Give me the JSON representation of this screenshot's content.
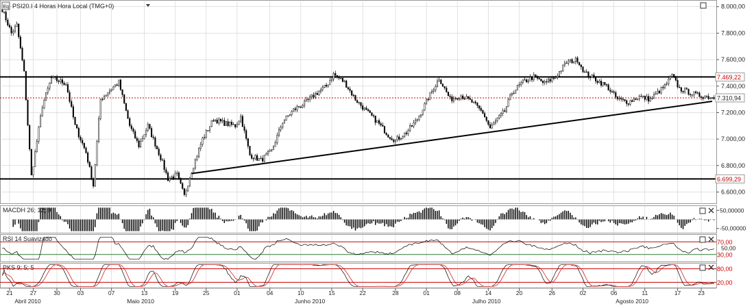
{
  "header": {
    "symbol_icon": "eq-icon",
    "title": "PSI20.I 4 Horas Hora Local (TMG+0)"
  },
  "colors": {
    "up": "#ffffff",
    "down": "#000000",
    "grid": "#cfcfcf",
    "price_line": "#cc0000",
    "level_label": "#cc0000",
    "macd": "#000000",
    "rsi": "#000000",
    "stoch_k": "#000000",
    "stoch_d": "#cc0000"
  },
  "chart_data": [
    {
      "type": "candlestick",
      "name": "price",
      "ylim": [
        6520,
        8040
      ],
      "y_ticks": [
        8000,
        7800,
        7600,
        7400,
        7200,
        7000,
        6800,
        6600
      ],
      "y_tick_labels": [
        "8.000,00",
        "7.800,00",
        "7.600,00",
        "7.400,00",
        "7.200,00",
        "7.000,00",
        "6.800,00",
        "6.600,00"
      ],
      "x_ticks": [
        {
          "label": "21",
          "i": 4
        },
        {
          "label": "27",
          "i": 17
        },
        {
          "label": "30",
          "i": 30
        },
        {
          "label": "03",
          "i": 43
        },
        {
          "label": "07",
          "i": 60
        },
        {
          "label": "13",
          "i": 78
        },
        {
          "label": "19",
          "i": 95
        },
        {
          "label": "25",
          "i": 112
        },
        {
          "label": "01",
          "i": 129
        },
        {
          "label": "04",
          "i": 147
        },
        {
          "label": "10",
          "i": 164
        },
        {
          "label": "15",
          "i": 181
        },
        {
          "label": "22",
          "i": 198
        },
        {
          "label": "28",
          "i": 216
        },
        {
          "label": "01",
          "i": 233
        },
        {
          "label": "08",
          "i": 250
        },
        {
          "label": "14",
          "i": 267
        },
        {
          "label": "20",
          "i": 284
        },
        {
          "label": "26",
          "i": 302
        },
        {
          "label": "02",
          "i": 319
        },
        {
          "label": "06",
          "i": 336
        },
        {
          "label": "11",
          "i": 353
        },
        {
          "label": "17",
          "i": 371
        },
        {
          "label": "23",
          "i": 384
        }
      ],
      "month_labels": [
        {
          "label": "Abril 2010",
          "i": 14
        },
        {
          "label": "Maio 2010",
          "i": 76
        },
        {
          "label": "Junho 2010",
          "i": 169
        },
        {
          "label": "Julho 2010",
          "i": 266
        },
        {
          "label": "Agosto 2010",
          "i": 346
        }
      ],
      "levels": [
        {
          "value": 7469.22,
          "label": "7.469,22"
        },
        {
          "value": 6699.29,
          "label": "6.699,29"
        }
      ],
      "last_price": {
        "value": 7310.94,
        "label": "7.310,94"
      },
      "trendline": {
        "start": {
          "i": 104,
          "value": 6740
        },
        "end": {
          "i": 390,
          "value": 7285
        }
      },
      "anchors": [
        [
          0,
          7980
        ],
        [
          5,
          7800
        ],
        [
          8,
          7860
        ],
        [
          12,
          7500
        ],
        [
          16,
          6720
        ],
        [
          22,
          7250
        ],
        [
          27,
          7460
        ],
        [
          35,
          7420
        ],
        [
          40,
          7100
        ],
        [
          46,
          6900
        ],
        [
          50,
          6650
        ],
        [
          54,
          7300
        ],
        [
          60,
          7380
        ],
        [
          64,
          7430
        ],
        [
          70,
          7100
        ],
        [
          75,
          6950
        ],
        [
          80,
          7100
        ],
        [
          87,
          6860
        ],
        [
          91,
          6700
        ],
        [
          96,
          6730
        ],
        [
          100,
          6570
        ],
        [
          104,
          6760
        ],
        [
          110,
          7000
        ],
        [
          116,
          7150
        ],
        [
          122,
          7120
        ],
        [
          128,
          7100
        ],
        [
          131,
          7170
        ],
        [
          136,
          6880
        ],
        [
          142,
          6840
        ],
        [
          148,
          6910
        ],
        [
          154,
          7130
        ],
        [
          160,
          7220
        ],
        [
          166,
          7270
        ],
        [
          172,
          7340
        ],
        [
          178,
          7400
        ],
        [
          182,
          7490
        ],
        [
          188,
          7430
        ],
        [
          194,
          7300
        ],
        [
          200,
          7210
        ],
        [
          206,
          7130
        ],
        [
          212,
          7030
        ],
        [
          216,
          6990
        ],
        [
          222,
          7050
        ],
        [
          228,
          7150
        ],
        [
          234,
          7310
        ],
        [
          240,
          7460
        ],
        [
          246,
          7300
        ],
        [
          252,
          7330
        ],
        [
          258,
          7280
        ],
        [
          264,
          7200
        ],
        [
          268,
          7080
        ],
        [
          272,
          7150
        ],
        [
          276,
          7210
        ],
        [
          280,
          7350
        ],
        [
          286,
          7430
        ],
        [
          292,
          7470
        ],
        [
          298,
          7420
        ],
        [
          304,
          7470
        ],
        [
          310,
          7580
        ],
        [
          316,
          7600
        ],
        [
          320,
          7500
        ],
        [
          326,
          7450
        ],
        [
          332,
          7400
        ],
        [
          338,
          7300
        ],
        [
          344,
          7280
        ],
        [
          350,
          7320
        ],
        [
          356,
          7300
        ],
        [
          360,
          7350
        ],
        [
          364,
          7400
        ],
        [
          368,
          7480
        ],
        [
          372,
          7380
        ],
        [
          378,
          7350
        ],
        [
          382,
          7330
        ],
        [
          390,
          7315
        ]
      ]
    },
    {
      "type": "histogram",
      "name": "MACDH 26; 12; 9",
      "ylim": [
        -70,
        70
      ],
      "y_tick_labels": [
        "50,00000",
        "-50,00000"
      ],
      "y_ticks": [
        50,
        -50
      ]
    },
    {
      "type": "line",
      "name": "RSI 14 Suavizado",
      "ylim": [
        10,
        90
      ],
      "levels": [
        {
          "value": 70,
          "label": "70,00"
        },
        {
          "value": 30,
          "label": "30,00"
        }
      ],
      "y_tick_labels": [
        "50,00"
      ]
    },
    {
      "type": "line",
      "name": "PKS 9; 5; 5",
      "ylim": [
        0,
        100
      ],
      "levels": [
        {
          "value": 80,
          "label": "80,00"
        },
        {
          "value": 20,
          "label": "20,00"
        }
      ]
    }
  ]
}
